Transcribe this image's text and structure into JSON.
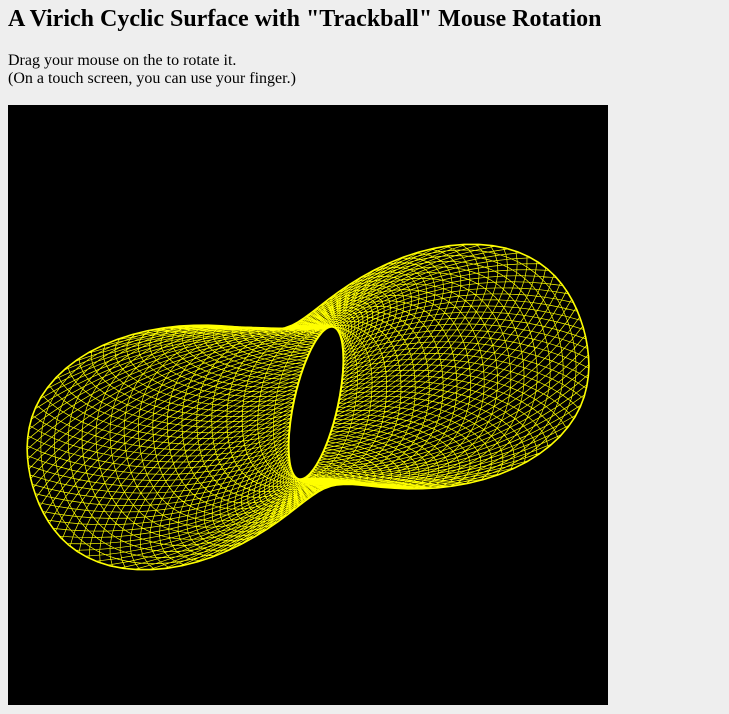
{
  "page": {
    "title": "A Virich Cyclic Surface with \"Trackball\" Mouse Rotation",
    "instructions": [
      "Drag your mouse on the to rotate it.",
      "(On a touch screen, you can use your finger.)"
    ]
  },
  "viewer": {
    "background_color": "#000000",
    "wireframe_color": "#ffff00",
    "surface": "virich-cyclic-surface"
  }
}
